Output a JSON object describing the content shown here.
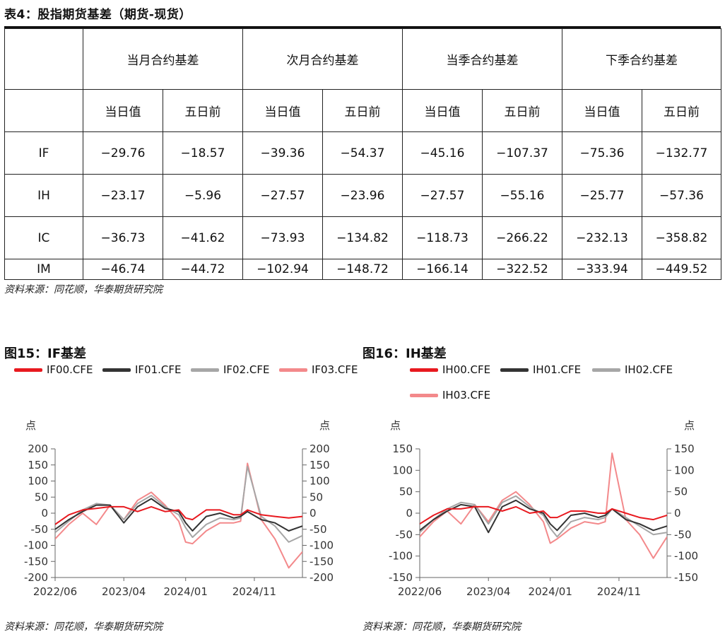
{
  "table": {
    "title": "表4：股指期货基差（期货-现货）",
    "groups": [
      "当月合约基差",
      "次月合约基差",
      "当季合约基差",
      "下季合约基差"
    ],
    "subheaders": [
      "当日值",
      "五日前",
      "当日值",
      "五日前",
      "当日值",
      "五日前",
      "当日值",
      "五日前"
    ],
    "rows": [
      {
        "label": "IF",
        "values": [
          "−29.76",
          "−18.57",
          "−39.36",
          "−54.37",
          "−45.16",
          "−107.37",
          "−75.36",
          "−132.77"
        ]
      },
      {
        "label": "IH",
        "values": [
          "−23.17",
          "−5.96",
          "−27.57",
          "−23.96",
          "−27.57",
          "−55.16",
          "−25.77",
          "−57.36"
        ]
      },
      {
        "label": "IC",
        "values": [
          "−36.73",
          "−41.62",
          "−73.93",
          "−134.82",
          "−118.73",
          "−266.22",
          "−232.13",
          "−358.82"
        ]
      },
      {
        "label": "IM",
        "values": [
          "−46.74",
          "−44.72",
          "−102.94",
          "−148.72",
          "−166.14",
          "−322.52",
          "−333.94",
          "−449.52"
        ]
      }
    ],
    "source": "资料来源：同花顺，华泰期货研究院"
  },
  "charts": [
    {
      "title": "图15：IF基差",
      "legend": [
        {
          "name": "IF00.CFE",
          "color": "#e8191f"
        },
        {
          "name": "IF01.CFE",
          "color": "#333333"
        },
        {
          "name": "IF02.CFE",
          "color": "#a6a6a6"
        },
        {
          "name": "IF03.CFE",
          "color": "#f3898b"
        }
      ],
      "source": "资料来源：同花顺，华泰期货研究院"
    },
    {
      "title": "图16：IH基差",
      "legend": [
        {
          "name": "IH00.CFE",
          "color": "#e8191f"
        },
        {
          "name": "IH01.CFE",
          "color": "#333333"
        },
        {
          "name": "IH02.CFE",
          "color": "#a6a6a6"
        },
        {
          "name": "IH03.CFE",
          "color": "#f3898b"
        }
      ],
      "source": "资料来源：同花顺，华泰期货研究院"
    }
  ],
  "chart_data": [
    {
      "type": "line",
      "title": "图15：IF基差",
      "ylabel_left": "点",
      "ylabel_right": "点",
      "ylim": [
        -200,
        200
      ],
      "yticks": [
        -200,
        -150,
        -100,
        -50,
        0,
        50,
        100,
        150,
        200
      ],
      "xlim": [
        "2022-06",
        "2025-06"
      ],
      "xticks": [
        "2022/06",
        "2023/04",
        "2024/01",
        "2024/11"
      ],
      "series": [
        {
          "name": "IF00.CFE",
          "color": "#e8191f",
          "x": [
            "2022-06",
            "2022-08",
            "2022-10",
            "2022-12",
            "2023-02",
            "2023-04",
            "2023-06",
            "2023-08",
            "2023-10",
            "2023-12",
            "2024-01",
            "2024-02",
            "2024-04",
            "2024-06",
            "2024-08",
            "2024-09",
            "2024-10",
            "2024-12",
            "2025-02",
            "2025-04",
            "2025-06"
          ],
          "values": [
            -35,
            -5,
            10,
            15,
            20,
            20,
            5,
            20,
            5,
            10,
            -15,
            -20,
            10,
            10,
            -5,
            -5,
            10,
            -5,
            -10,
            -15,
            -10
          ]
        },
        {
          "name": "IF01.CFE",
          "color": "#333333",
          "x": [
            "2022-06",
            "2022-08",
            "2022-10",
            "2022-12",
            "2023-02",
            "2023-04",
            "2023-06",
            "2023-08",
            "2023-10",
            "2023-12",
            "2024-01",
            "2024-02",
            "2024-04",
            "2024-06",
            "2024-08",
            "2024-09",
            "2024-10",
            "2024-12",
            "2025-02",
            "2025-04",
            "2025-06"
          ],
          "values": [
            -50,
            -20,
            5,
            25,
            25,
            -30,
            20,
            45,
            15,
            5,
            -30,
            -55,
            -10,
            0,
            -15,
            -10,
            5,
            -20,
            -30,
            -55,
            -40
          ]
        },
        {
          "name": "IF02.CFE",
          "color": "#a6a6a6",
          "x": [
            "2022-06",
            "2022-08",
            "2022-10",
            "2022-12",
            "2023-02",
            "2023-04",
            "2023-06",
            "2023-08",
            "2023-10",
            "2023-12",
            "2024-01",
            "2024-02",
            "2024-04",
            "2024-06",
            "2024-08",
            "2024-09",
            "2024-10",
            "2024-12",
            "2025-02",
            "2025-04",
            "2025-06"
          ],
          "values": [
            -60,
            -25,
            10,
            30,
            25,
            -20,
            30,
            55,
            20,
            -5,
            -45,
            -75,
            -35,
            -15,
            -20,
            -15,
            145,
            -10,
            -40,
            -90,
            -70
          ]
        },
        {
          "name": "IF03.CFE",
          "color": "#f3898b",
          "x": [
            "2022-06",
            "2022-08",
            "2022-10",
            "2022-12",
            "2023-02",
            "2023-04",
            "2023-06",
            "2023-08",
            "2023-10",
            "2023-12",
            "2024-01",
            "2024-02",
            "2024-04",
            "2024-06",
            "2024-08",
            "2024-09",
            "2024-10",
            "2024-12",
            "2025-02",
            "2025-04",
            "2025-06"
          ],
          "values": [
            -80,
            -35,
            0,
            -35,
            25,
            -20,
            40,
            65,
            25,
            -25,
            -90,
            -95,
            -55,
            -30,
            -30,
            -25,
            155,
            -20,
            -80,
            -170,
            -120
          ]
        }
      ]
    },
    {
      "type": "line",
      "title": "图16：IH基差",
      "ylabel_left": "点",
      "ylabel_right": "点",
      "ylim": [
        -150,
        150
      ],
      "yticks": [
        -150,
        -100,
        -50,
        0,
        50,
        100,
        150
      ],
      "xlim": [
        "2022-06",
        "2025-06"
      ],
      "xticks": [
        "2022/06",
        "2023/04",
        "2024/01",
        "2024/11"
      ],
      "series": [
        {
          "name": "IH00.CFE",
          "color": "#e8191f",
          "x": [
            "2022-06",
            "2022-08",
            "2022-10",
            "2022-12",
            "2023-02",
            "2023-04",
            "2023-06",
            "2023-08",
            "2023-10",
            "2023-12",
            "2024-01",
            "2024-02",
            "2024-04",
            "2024-06",
            "2024-08",
            "2024-09",
            "2024-10",
            "2024-12",
            "2025-02",
            "2025-04",
            "2025-06"
          ],
          "values": [
            -25,
            -5,
            10,
            10,
            15,
            15,
            5,
            15,
            0,
            5,
            -10,
            -10,
            5,
            5,
            0,
            0,
            10,
            0,
            -10,
            -15,
            -5
          ]
        },
        {
          "name": "IH01.CFE",
          "color": "#333333",
          "x": [
            "2022-06",
            "2022-08",
            "2022-10",
            "2022-12",
            "2023-02",
            "2023-04",
            "2023-06",
            "2023-08",
            "2023-10",
            "2023-12",
            "2024-01",
            "2024-02",
            "2024-04",
            "2024-06",
            "2024-08",
            "2024-09",
            "2024-10",
            "2024-12",
            "2025-02",
            "2025-04",
            "2025-06"
          ],
          "values": [
            -40,
            -15,
            5,
            20,
            15,
            -45,
            15,
            30,
            10,
            0,
            -25,
            -40,
            -5,
            0,
            -10,
            -5,
            10,
            -15,
            -25,
            -40,
            -30
          ]
        },
        {
          "name": "IH02.CFE",
          "color": "#a6a6a6",
          "x": [
            "2022-06",
            "2022-08",
            "2022-10",
            "2022-12",
            "2023-02",
            "2023-04",
            "2023-06",
            "2023-08",
            "2023-10",
            "2023-12",
            "2024-01",
            "2024-02",
            "2024-04",
            "2024-06",
            "2024-08",
            "2024-09",
            "2024-10",
            "2024-12",
            "2025-02",
            "2025-04",
            "2025-06"
          ],
          "values": [
            -45,
            -15,
            10,
            25,
            20,
            -25,
            25,
            40,
            15,
            -5,
            -35,
            -55,
            -20,
            -10,
            -15,
            -10,
            10,
            -10,
            -30,
            -50,
            -45
          ]
        },
        {
          "name": "IH03.CFE",
          "color": "#f3898b",
          "x": [
            "2022-06",
            "2022-08",
            "2022-10",
            "2022-12",
            "2023-02",
            "2023-04",
            "2023-06",
            "2023-08",
            "2023-10",
            "2023-12",
            "2024-01",
            "2024-02",
            "2024-04",
            "2024-06",
            "2024-08",
            "2024-09",
            "2024-10",
            "2024-12",
            "2025-02",
            "2025-04",
            "2025-06"
          ],
          "values": [
            -55,
            -20,
            5,
            -25,
            20,
            -20,
            30,
            50,
            20,
            -20,
            -70,
            -60,
            -35,
            -20,
            -25,
            -20,
            140,
            -15,
            -50,
            -105,
            -55
          ]
        }
      ]
    }
  ]
}
